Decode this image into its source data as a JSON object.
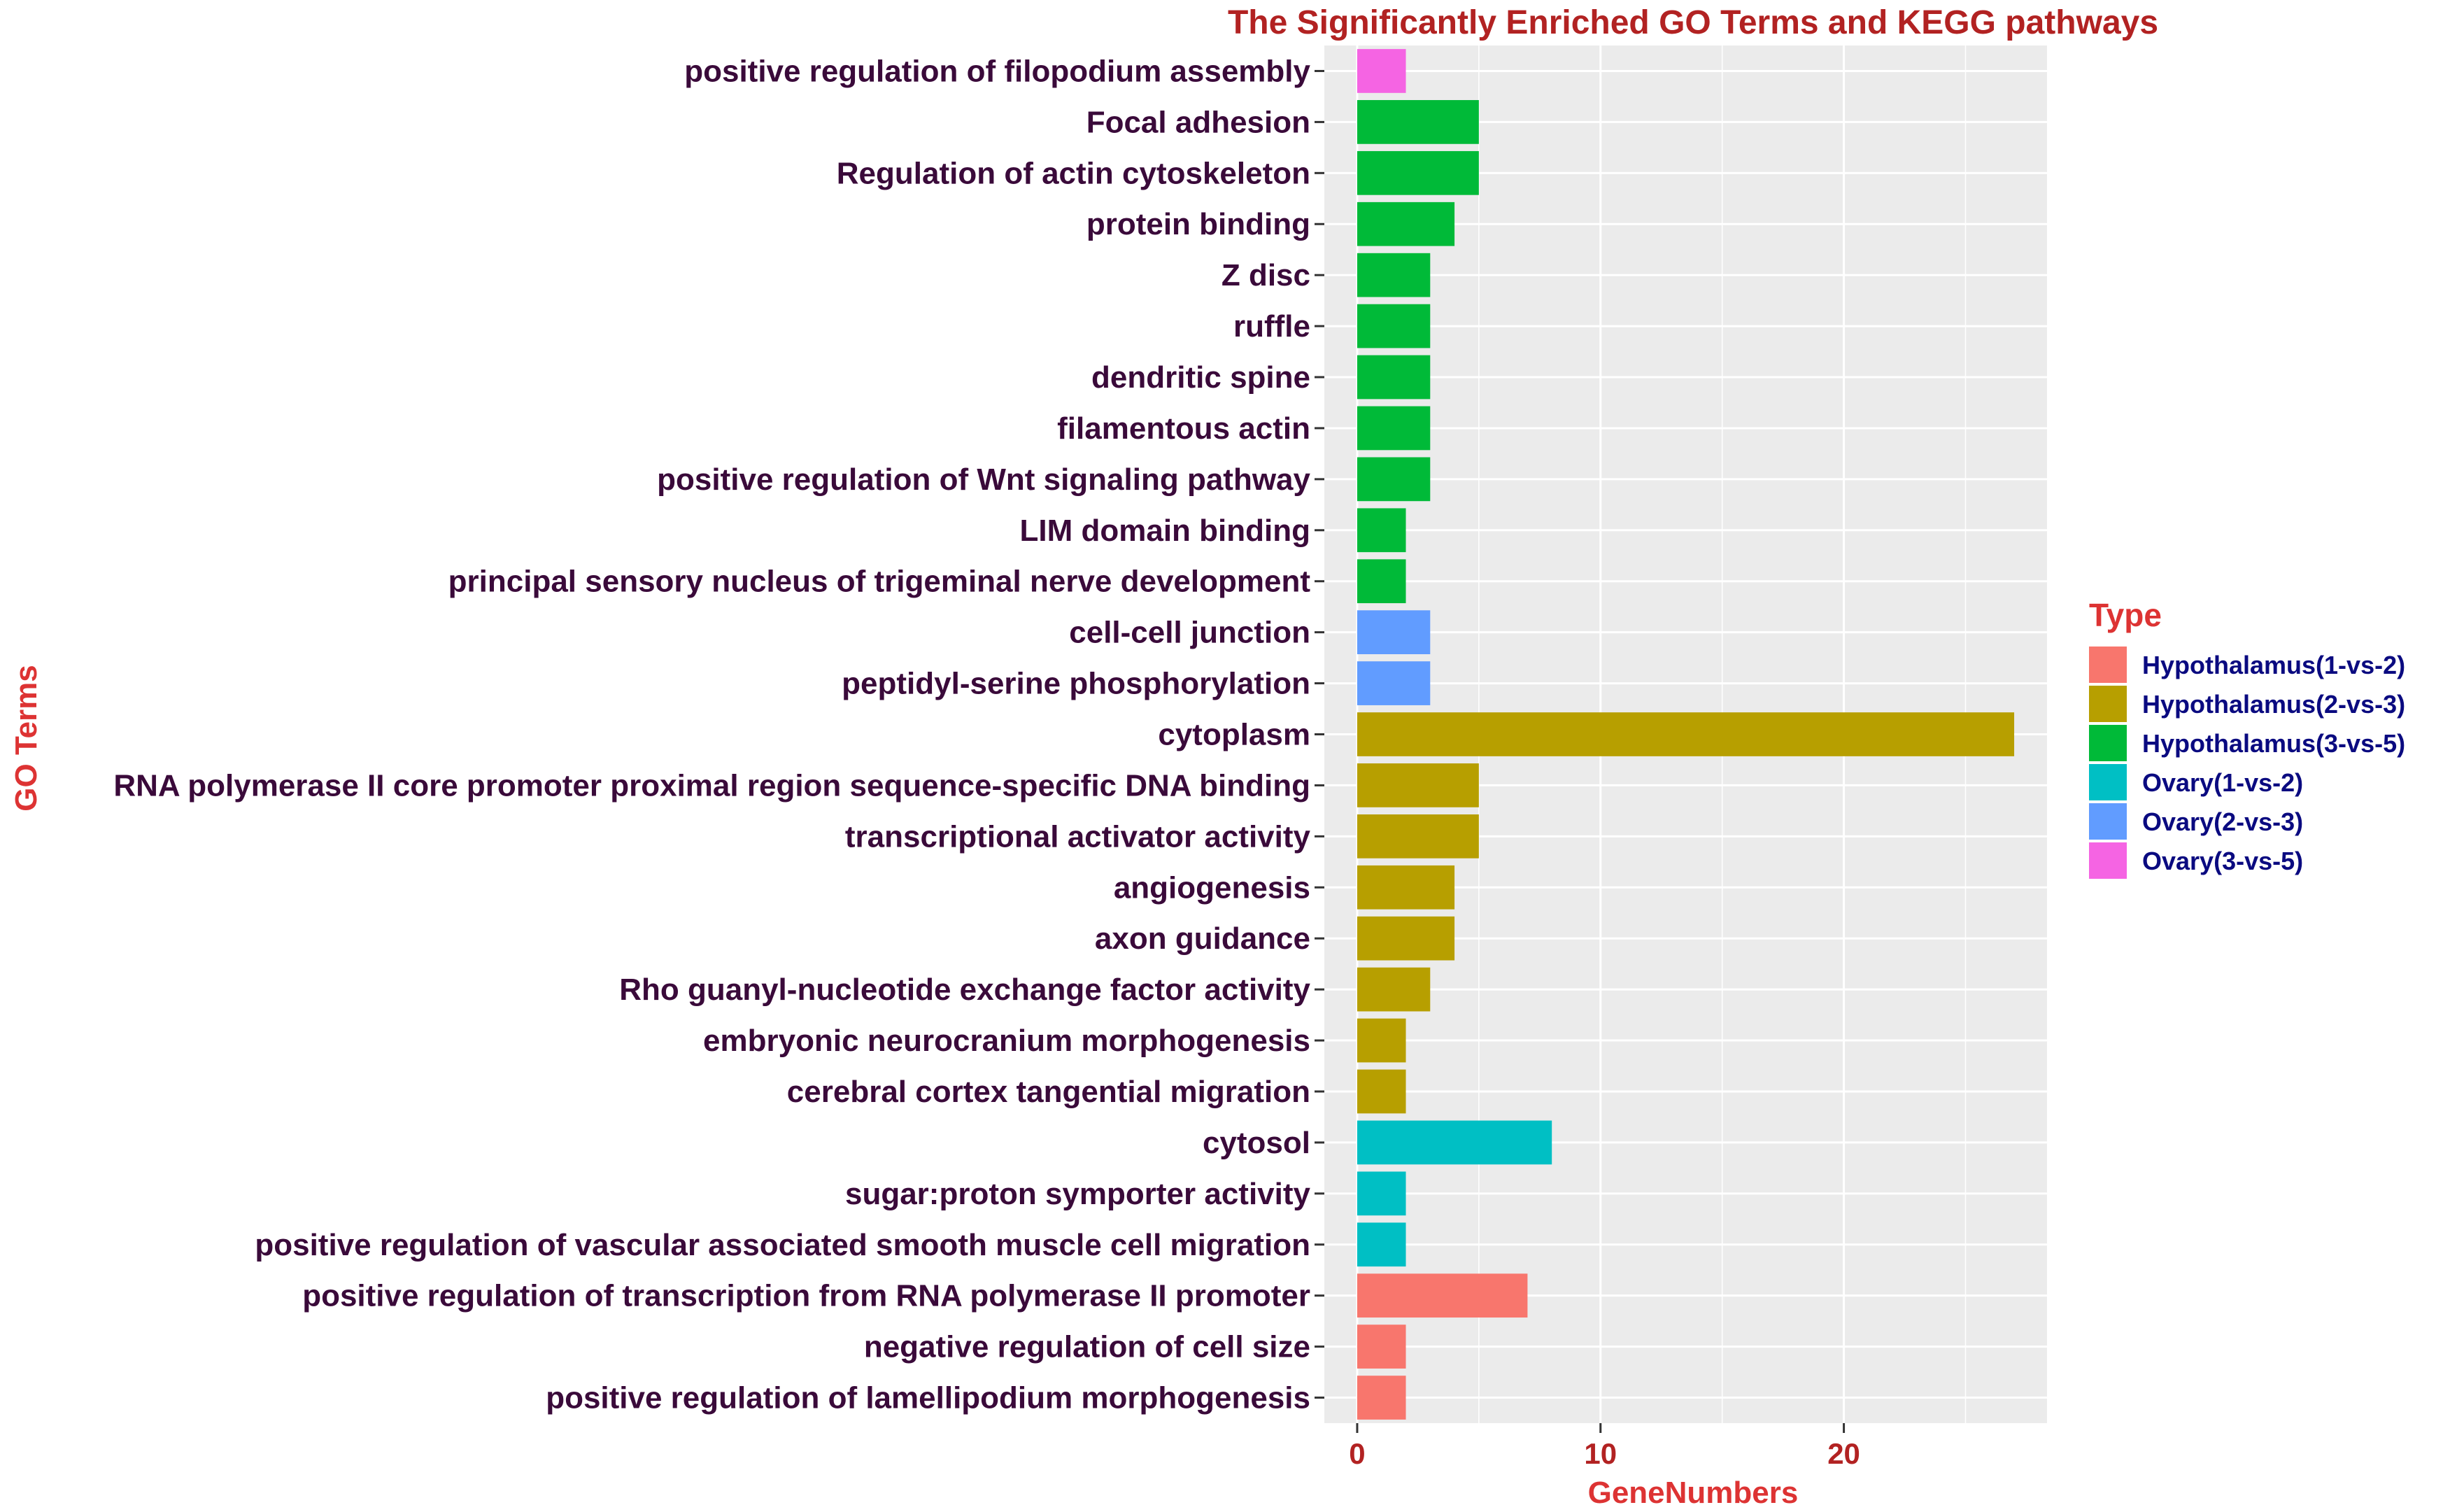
{
  "chart_data": {
    "type": "bar",
    "orientation": "horizontal",
    "title": "The Significantly Enriched GO Terms and KEGG pathways",
    "xlabel": "GeneNumbers",
    "ylabel": "GO Terms",
    "xlim": [
      -1.35,
      28.35
    ],
    "xticks": [
      0,
      10,
      20
    ],
    "xtick_labels": [
      "0",
      "10",
      "20"
    ],
    "grid": true,
    "legend": {
      "title": "Type",
      "position": "right",
      "entries": [
        {
          "label": "Hypothalamus(1-vs-2)",
          "color": "#F8766D"
        },
        {
          "label": "Hypothalamus(2-vs-3)",
          "color": "#B79F00"
        },
        {
          "label": "Hypothalamus(3-vs-5)",
          "color": "#00BA38"
        },
        {
          "label": "Ovary(1-vs-2)",
          "color": "#00BFC4"
        },
        {
          "label": "Ovary(2-vs-3)",
          "color": "#619CFF"
        },
        {
          "label": "Ovary(3-vs-5)",
          "color": "#F564E3"
        }
      ]
    },
    "categories": [
      "positive regulation of filopodium assembly",
      "Focal adhesion",
      "Regulation of actin cytoskeleton",
      "protein binding",
      "Z disc",
      "ruffle",
      "dendritic spine",
      "filamentous actin",
      "positive regulation of Wnt signaling pathway",
      "LIM domain binding",
      "principal sensory nucleus of trigeminal nerve development",
      "cell-cell junction",
      "peptidyl-serine phosphorylation",
      "cytoplasm",
      "RNA polymerase II core promoter proximal region sequence-specific DNA binding",
      "transcriptional activator activity",
      "angiogenesis",
      "axon guidance",
      "Rho guanyl-nucleotide exchange factor activity",
      "embryonic neurocranium morphogenesis",
      "cerebral cortex tangential migration",
      "cytosol",
      "sugar:proton symporter activity",
      "positive regulation of vascular associated smooth muscle cell migration",
      "positive regulation of transcription from RNA polymerase II promoter",
      "negative regulation of cell size",
      "positive regulation of lamellipodium morphogenesis"
    ],
    "values": [
      2,
      5,
      5,
      4,
      3,
      3,
      3,
      3,
      3,
      2,
      2,
      3,
      3,
      27,
      5,
      5,
      4,
      4,
      3,
      2,
      2,
      8,
      2,
      2,
      7,
      2,
      2
    ],
    "types": [
      "Ovary(3-vs-5)",
      "Hypothalamus(3-vs-5)",
      "Hypothalamus(3-vs-5)",
      "Hypothalamus(3-vs-5)",
      "Hypothalamus(3-vs-5)",
      "Hypothalamus(3-vs-5)",
      "Hypothalamus(3-vs-5)",
      "Hypothalamus(3-vs-5)",
      "Hypothalamus(3-vs-5)",
      "Hypothalamus(3-vs-5)",
      "Hypothalamus(3-vs-5)",
      "Ovary(2-vs-3)",
      "Ovary(2-vs-3)",
      "Hypothalamus(2-vs-3)",
      "Hypothalamus(2-vs-3)",
      "Hypothalamus(2-vs-3)",
      "Hypothalamus(2-vs-3)",
      "Hypothalamus(2-vs-3)",
      "Hypothalamus(2-vs-3)",
      "Hypothalamus(2-vs-3)",
      "Hypothalamus(2-vs-3)",
      "Ovary(1-vs-2)",
      "Ovary(1-vs-2)",
      "Ovary(1-vs-2)",
      "Hypothalamus(1-vs-2)",
      "Hypothalamus(1-vs-2)",
      "Hypothalamus(1-vs-2)"
    ],
    "panel_background": "#EBEBEB",
    "grid_color": "#FFFFFF"
  }
}
